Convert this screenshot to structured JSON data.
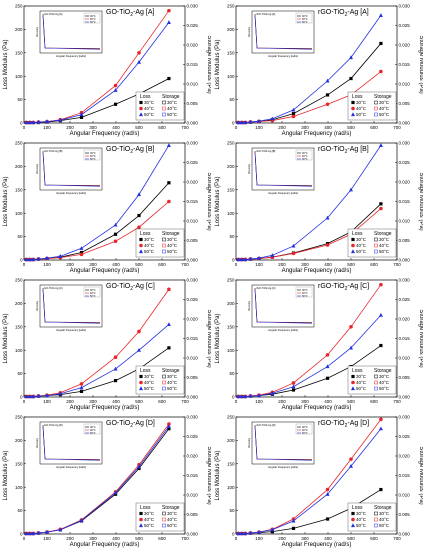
{
  "figure": {
    "xlabel": "Angular Frequency (rad/s)",
    "ylabel_left": "Loss Modulus (Pa)",
    "ylabel_right": "Storage Modulus (Pa)",
    "legend": {
      "loss_label": "Loss",
      "storage_label": "Storage"
    },
    "series_colors": {
      "30°C": "#000000",
      "40°C": "#e8262a",
      "50°C": "#2230e0"
    }
  },
  "chart_data": [
    {
      "type": "line",
      "title": "GO-TiO2-Ag [A]",
      "xlim": [
        0,
        700
      ],
      "ylim": [
        0,
        250
      ],
      "y2lim": [
        0,
        0.03
      ],
      "x": [
        10,
        25,
        40,
        63,
        100,
        158,
        250,
        398,
        500,
        630
      ],
      "series": [
        {
          "name": "30°C",
          "values": [
            1,
            1,
            1,
            1,
            2,
            5,
            12,
            40,
            62,
            95
          ]
        },
        {
          "name": "40°C",
          "values": [
            1,
            1,
            1,
            2,
            3,
            7,
            22,
            80,
            150,
            240
          ]
        },
        {
          "name": "50°C",
          "values": [
            1,
            1,
            1,
            2,
            3,
            6,
            18,
            70,
            130,
            215
          ]
        }
      ],
      "inset": {
        "title": "GO-TiO2-Ag [A]",
        "xlabel": "Angular Frequency [rad/s]",
        "ylabel": "Viscosity"
      }
    },
    {
      "type": "line",
      "title": "rGO-TiO2-Ag [A]",
      "xlim": [
        0,
        700
      ],
      "ylim": [
        0,
        250
      ],
      "y2lim": [
        0,
        0.03
      ],
      "x": [
        10,
        25,
        40,
        63,
        100,
        158,
        250,
        398,
        500,
        630
      ],
      "series": [
        {
          "name": "30°C",
          "values": [
            1,
            1,
            1,
            2,
            3,
            7,
            20,
            60,
            95,
            170
          ]
        },
        {
          "name": "40°C",
          "values": [
            1,
            1,
            1,
            2,
            3,
            5,
            14,
            40,
            60,
            110
          ]
        },
        {
          "name": "50°C",
          "values": [
            1,
            1,
            1,
            2,
            4,
            9,
            28,
            90,
            140,
            230
          ]
        }
      ],
      "inset": {
        "title": "rGO-TiO2-Ag [A]",
        "xlabel": "Angular Frequency [rad/s]",
        "ylabel": "Viscosity"
      }
    },
    {
      "type": "line",
      "title": "GO-TiO2-Ag [B]",
      "xlim": [
        0,
        700
      ],
      "ylim": [
        0,
        250
      ],
      "y2lim": [
        0,
        0.03
      ],
      "x": [
        10,
        25,
        40,
        63,
        100,
        158,
        250,
        398,
        500,
        630
      ],
      "series": [
        {
          "name": "30°C",
          "values": [
            1,
            1,
            1,
            2,
            3,
            6,
            16,
            55,
            95,
            165
          ]
        },
        {
          "name": "40°C",
          "values": [
            1,
            1,
            1,
            2,
            3,
            5,
            12,
            40,
            70,
            125
          ]
        },
        {
          "name": "50°C",
          "values": [
            1,
            1,
            1,
            2,
            4,
            8,
            25,
            75,
            140,
            245
          ]
        }
      ],
      "inset": {
        "title": "GO-TiO2-Ag [B]",
        "xlabel": "Angular Frequency [rad/s]",
        "ylabel": "Viscosity"
      }
    },
    {
      "type": "line",
      "title": "rGO-TiO2-Ag [B]",
      "xlim": [
        0,
        700
      ],
      "ylim": [
        0,
        250
      ],
      "y2lim": [
        0,
        0.03
      ],
      "x": [
        10,
        25,
        40,
        63,
        100,
        158,
        250,
        398,
        500,
        630
      ],
      "series": [
        {
          "name": "30°C",
          "values": [
            1,
            1,
            1,
            2,
            3,
            6,
            15,
            35,
            60,
            120
          ]
        },
        {
          "name": "40°C",
          "values": [
            1,
            1,
            1,
            2,
            3,
            6,
            14,
            32,
            55,
            110
          ]
        },
        {
          "name": "50°C",
          "values": [
            1,
            1,
            1,
            2,
            4,
            10,
            30,
            90,
            150,
            245
          ]
        }
      ],
      "inset": {
        "title": "rGO-TiO2-Ag [B]",
        "xlabel": "Angular Frequency [rad/s]",
        "ylabel": "Viscosity"
      }
    },
    {
      "type": "line",
      "title": "GO-TiO2-Ag [C]",
      "xlim": [
        0,
        700
      ],
      "ylim": [
        0,
        250
      ],
      "y2lim": [
        0,
        0.03
      ],
      "x": [
        10,
        25,
        40,
        63,
        100,
        158,
        250,
        398,
        500,
        630
      ],
      "series": [
        {
          "name": "30°C",
          "values": [
            1,
            1,
            1,
            2,
            3,
            5,
            12,
            35,
            60,
            105
          ]
        },
        {
          "name": "40°C",
          "values": [
            1,
            1,
            1,
            2,
            4,
            9,
            28,
            85,
            140,
            230
          ]
        },
        {
          "name": "50°C",
          "values": [
            1,
            1,
            1,
            2,
            3,
            7,
            20,
            60,
            100,
            155
          ]
        }
      ],
      "inset": {
        "title": "GO-TiO2-Ag [C]",
        "xlabel": "Angular Frequency [rad/s]",
        "ylabel": "Viscosity"
      }
    },
    {
      "type": "line",
      "title": "rGO-TiO2-Ag [C]",
      "xlim": [
        0,
        700
      ],
      "ylim": [
        0,
        250
      ],
      "y2lim": [
        0,
        0.03
      ],
      "x": [
        10,
        25,
        40,
        63,
        100,
        158,
        250,
        398,
        500,
        630
      ],
      "series": [
        {
          "name": "30°C",
          "values": [
            1,
            1,
            1,
            2,
            3,
            6,
            15,
            40,
            65,
            110
          ]
        },
        {
          "name": "40°C",
          "values": [
            1,
            1,
            1,
            2,
            4,
            10,
            30,
            90,
            150,
            240
          ]
        },
        {
          "name": "50°C",
          "values": [
            1,
            1,
            1,
            2,
            3,
            8,
            22,
            65,
            105,
            175
          ]
        }
      ],
      "inset": {
        "title": "rGO-TiO2-Ag [C]",
        "xlabel": "Angular Frequency [rad/s]",
        "ylabel": "Viscosity"
      }
    },
    {
      "type": "line",
      "title": "GO-TiO2-Ag [D]",
      "xlim": [
        0,
        700
      ],
      "ylim": [
        0,
        250
      ],
      "y2lim": [
        0,
        0.03
      ],
      "x": [
        10,
        25,
        40,
        63,
        100,
        158,
        250,
        398,
        500,
        630
      ],
      "series": [
        {
          "name": "30°C",
          "values": [
            1,
            1,
            1,
            2,
            4,
            9,
            28,
            85,
            140,
            225
          ]
        },
        {
          "name": "40°C",
          "values": [
            1,
            1,
            1,
            2,
            4,
            10,
            30,
            90,
            148,
            235
          ]
        },
        {
          "name": "50°C",
          "values": [
            1,
            1,
            1,
            2,
            4,
            9,
            29,
            88,
            144,
            230
          ]
        }
      ],
      "inset": {
        "title": "GO-TiO2-Ag [D]",
        "xlabel": "Angular Frequency [rad/s]",
        "ylabel": "Viscosity"
      }
    },
    {
      "type": "line",
      "title": "rGO-TiO2-Ag [D]",
      "xlim": [
        0,
        700
      ],
      "ylim": [
        0,
        250
      ],
      "y2lim": [
        0,
        0.03
      ],
      "x": [
        10,
        25,
        40,
        63,
        100,
        158,
        250,
        398,
        500,
        630
      ],
      "series": [
        {
          "name": "30°C",
          "values": [
            1,
            1,
            1,
            2,
            3,
            5,
            12,
            32,
            55,
            95
          ]
        },
        {
          "name": "40°C",
          "values": [
            1,
            1,
            1,
            2,
            4,
            10,
            32,
            95,
            160,
            245
          ]
        },
        {
          "name": "50°C",
          "values": [
            1,
            1,
            1,
            2,
            4,
            9,
            28,
            85,
            145,
            225
          ]
        }
      ],
      "inset": {
        "title": "rGO-TiO2-Ag [D]",
        "xlabel": "Angular Frequency [rad/s]",
        "ylabel": "Viscosity"
      }
    }
  ]
}
